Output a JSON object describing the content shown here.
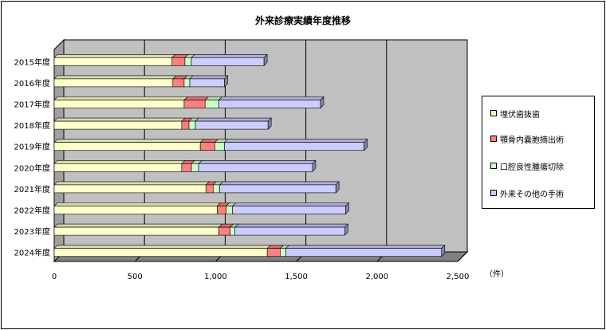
{
  "chart_data": {
    "type": "bar",
    "orientation": "horizontal",
    "stacked": true,
    "title": "外来診療実績年度推移",
    "unit_label": "（件）",
    "categories": [
      "2015年度",
      "2016年度",
      "2017年度",
      "2018年度",
      "2019年度",
      "2020年度",
      "2021年度",
      "2022年度",
      "2023年度",
      "2024年度"
    ],
    "series": [
      {
        "name": "埋伏歯抜歯",
        "color": "#ffffcc",
        "values": [
          730,
          735,
          805,
          790,
          905,
          790,
          940,
          1010,
          1020,
          1320
        ]
      },
      {
        "name": "顎骨内嚢胞摘出術",
        "color": "#ff8080",
        "values": [
          80,
          70,
          130,
          45,
          90,
          60,
          45,
          55,
          70,
          80
        ]
      },
      {
        "name": "口腔良性腫瘍切除",
        "color": "#ccffcc",
        "values": [
          40,
          35,
          85,
          40,
          60,
          45,
          40,
          40,
          30,
          35
        ]
      },
      {
        "name": "外来その他の手術",
        "color": "#ccccff",
        "values": [
          450,
          215,
          630,
          450,
          865,
          705,
          720,
          700,
          680,
          965
        ]
      }
    ],
    "x_ticks": [
      "0",
      "500",
      "1,000",
      "1,500",
      "2,000",
      "2,500"
    ],
    "xlim": [
      0,
      2500
    ],
    "grid": true,
    "legend_position": "right"
  }
}
